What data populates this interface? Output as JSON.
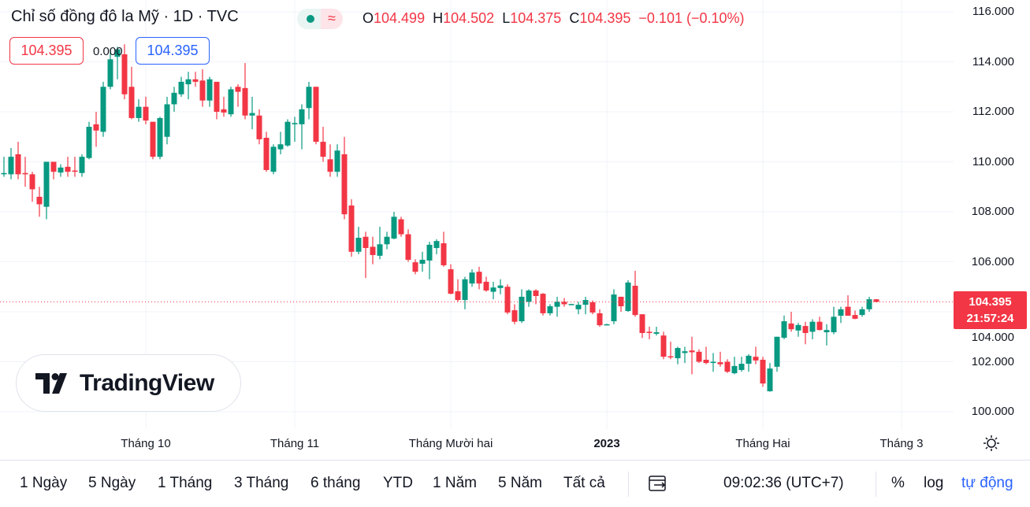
{
  "header": {
    "title": "Chỉ số đồng đô la Mỹ · 1D · TVC",
    "wave_symbol": "≈",
    "ohlc": {
      "o_label": "O",
      "o": "104.499",
      "h_label": "H",
      "h": "104.502",
      "l_label": "L",
      "l": "104.375",
      "c_label": "C",
      "c": "104.395",
      "change": "−0.101 (−0.10%)"
    },
    "sell_price": "104.395",
    "spread": "0.000",
    "buy_price": "104.395"
  },
  "last_price": {
    "value": "104.395",
    "countdown": "21:57:24"
  },
  "logo": {
    "text": "TradingView"
  },
  "toolbar": {
    "ranges": [
      "1 Ngày",
      "5 Ngày",
      "1 Tháng",
      "3 Tháng",
      "6 tháng",
      "YTD",
      "1 Năm",
      "5 Năm",
      "Tất cả"
    ],
    "time": "09:02:36 (UTC+7)",
    "percent": "%",
    "log": "log",
    "auto": "tự động"
  },
  "colors": {
    "up": "#089981",
    "down": "#f23645",
    "accent": "#2962ff"
  },
  "chart_data": {
    "type": "candlestick",
    "title": "Chỉ số đồng đô la Mỹ · 1D · TVC",
    "ylim": [
      99.6,
      116.6
    ],
    "y_ticks": [
      "116.000",
      "114.000",
      "112.000",
      "110.000",
      "108.000",
      "106.000",
      "104.000",
      "102.000",
      "100.000"
    ],
    "y_tick_values": [
      116,
      114,
      112,
      110,
      108,
      106,
      104,
      102,
      100
    ],
    "x_ticks": [
      {
        "label": "Tháng 10",
        "index": 20,
        "bold": false
      },
      {
        "label": "Tháng 11",
        "index": 41,
        "bold": false
      },
      {
        "label": "Tháng Mười hai",
        "index": 63,
        "bold": false
      },
      {
        "label": "2023",
        "index": 85,
        "bold": true
      },
      {
        "label": "Tháng Hai",
        "index": 107,
        "bold": false
      },
      {
        "label": "Tháng 3",
        "index": 127,
        "bold": false
      }
    ],
    "last_value": 104.395,
    "ohlc": [
      [
        109.5,
        110.2,
        109.4,
        109.55
      ],
      [
        109.5,
        110.55,
        109.3,
        110.2
      ],
      [
        110.3,
        110.8,
        109.3,
        109.5
      ],
      [
        109.55,
        110.2,
        109.0,
        109.5
      ],
      [
        109.5,
        109.6,
        108.4,
        108.9
      ],
      [
        108.6,
        109.0,
        107.8,
        108.3
      ],
      [
        108.2,
        110.0,
        107.7,
        110.0
      ],
      [
        110.0,
        110.0,
        109.3,
        109.6
      ],
      [
        109.57,
        109.9,
        109.4,
        109.77
      ],
      [
        109.8,
        110.2,
        109.4,
        109.6
      ],
      [
        109.65,
        110.2,
        109.4,
        109.6
      ],
      [
        109.55,
        110.3,
        109.4,
        110.2
      ],
      [
        110.15,
        111.6,
        110.1,
        111.4
      ],
      [
        111.5,
        112.0,
        110.6,
        111.25
      ],
      [
        111.2,
        113.2,
        111.0,
        113.0
      ],
      [
        113.0,
        114.5,
        112.9,
        114.1
      ],
      [
        114.2,
        114.6,
        113.3,
        114.5
      ],
      [
        114.3,
        114.7,
        112.5,
        112.7
      ],
      [
        113.0,
        113.8,
        111.7,
        111.75
      ],
      [
        111.75,
        112.5,
        111.6,
        112.2
      ],
      [
        112.2,
        112.6,
        111.5,
        111.65
      ],
      [
        111.6,
        111.6,
        110.1,
        110.2
      ],
      [
        110.2,
        111.8,
        110.1,
        111.75
      ],
      [
        111.0,
        112.6,
        110.7,
        112.3
      ],
      [
        112.3,
        113.0,
        112.0,
        112.76
      ],
      [
        112.7,
        113.4,
        112.6,
        113.2
      ],
      [
        113.1,
        113.6,
        112.5,
        113.3
      ],
      [
        113.3,
        113.6,
        113.0,
        113.2
      ],
      [
        113.25,
        113.7,
        112.2,
        112.45
      ],
      [
        112.45,
        113.4,
        112.2,
        113.3
      ],
      [
        113.2,
        113.2,
        111.7,
        112.0
      ],
      [
        112.1,
        112.6,
        111.8,
        111.97
      ],
      [
        111.9,
        113.0,
        111.8,
        112.9
      ],
      [
        113.0,
        113.1,
        112.2,
        112.8
      ],
      [
        112.95,
        113.95,
        111.7,
        111.85
      ],
      [
        111.85,
        112.6,
        111.3,
        111.95
      ],
      [
        111.85,
        112.1,
        110.7,
        110.9
      ],
      [
        110.96,
        111.2,
        109.6,
        109.67
      ],
      [
        109.6,
        110.7,
        109.5,
        110.6
      ],
      [
        110.5,
        111.2,
        110.3,
        110.7
      ],
      [
        110.65,
        111.7,
        110.6,
        111.6
      ],
      [
        111.5,
        111.8,
        110.8,
        111.55
      ],
      [
        111.5,
        112.3,
        110.5,
        112.1
      ],
      [
        112.15,
        113.2,
        111.7,
        113.0
      ],
      [
        113.0,
        113.0,
        110.7,
        110.8
      ],
      [
        110.8,
        111.4,
        110.0,
        110.2
      ],
      [
        110.1,
        110.7,
        109.4,
        109.6
      ],
      [
        109.6,
        110.7,
        109.4,
        110.45
      ],
      [
        110.3,
        111.0,
        107.7,
        107.9
      ],
      [
        108.25,
        108.5,
        106.2,
        106.4
      ],
      [
        106.4,
        107.4,
        106.3,
        106.96
      ],
      [
        107.0,
        107.2,
        105.35,
        106.55
      ],
      [
        106.6,
        107.0,
        105.9,
        106.27
      ],
      [
        106.24,
        107.4,
        106.1,
        106.7
      ],
      [
        106.7,
        107.2,
        106.5,
        107.0
      ],
      [
        106.93,
        108.0,
        106.9,
        107.8
      ],
      [
        107.7,
        107.8,
        107.0,
        107.1
      ],
      [
        107.1,
        107.3,
        106.0,
        106.08
      ],
      [
        105.98,
        106.1,
        105.5,
        105.6
      ],
      [
        105.92,
        106.4,
        105.6,
        106.08
      ],
      [
        106.05,
        106.8,
        105.3,
        106.68
      ],
      [
        106.55,
        106.9,
        106.3,
        106.83
      ],
      [
        106.74,
        107.2,
        105.8,
        105.86
      ],
      [
        105.7,
        105.9,
        104.7,
        104.72
      ],
      [
        104.82,
        105.3,
        104.4,
        104.47
      ],
      [
        104.47,
        105.4,
        104.1,
        105.3
      ],
      [
        105.13,
        105.7,
        105.0,
        105.57
      ],
      [
        105.6,
        105.8,
        104.9,
        105.13
      ],
      [
        105.2,
        105.4,
        104.8,
        104.85
      ],
      [
        104.8,
        105.2,
        104.5,
        104.97
      ],
      [
        104.95,
        105.3,
        104.7,
        105.05
      ],
      [
        105.0,
        105.1,
        103.9,
        103.97
      ],
      [
        104.06,
        104.3,
        103.5,
        103.6
      ],
      [
        103.62,
        104.9,
        103.55,
        104.6
      ],
      [
        104.4,
        104.9,
        104.2,
        104.85
      ],
      [
        104.85,
        104.9,
        104.3,
        104.63
      ],
      [
        104.72,
        104.75,
        103.85,
        103.94
      ],
      [
        103.94,
        104.3,
        103.85,
        104.22
      ],
      [
        104.2,
        104.6,
        103.8,
        104.4
      ],
      [
        104.4,
        104.55,
        104.2,
        104.3
      ],
      [
        104.3,
        104.32,
        104.28,
        104.31
      ],
      [
        104.1,
        104.4,
        103.9,
        104.28
      ],
      [
        104.28,
        104.6,
        103.9,
        104.47
      ],
      [
        104.38,
        104.45,
        103.9,
        103.97
      ],
      [
        103.94,
        104.1,
        103.4,
        103.46
      ],
      [
        103.5,
        103.52,
        103.48,
        103.5
      ],
      [
        103.62,
        104.9,
        103.5,
        104.69
      ],
      [
        104.6,
        104.6,
        104.0,
        104.22
      ],
      [
        104.03,
        105.26,
        104.0,
        105.17
      ],
      [
        105.04,
        105.64,
        103.8,
        103.87
      ],
      [
        103.9,
        103.9,
        102.95,
        103.15
      ],
      [
        103.2,
        103.4,
        102.9,
        103.15
      ],
      [
        103.12,
        103.4,
        103.05,
        103.18
      ],
      [
        103.05,
        103.2,
        102.1,
        102.2
      ],
      [
        102.22,
        102.8,
        102.1,
        102.18
      ],
      [
        102.14,
        102.6,
        101.9,
        102.55
      ],
      [
        102.35,
        102.6,
        101.95,
        102.42
      ],
      [
        102.45,
        103.0,
        101.5,
        102.38
      ],
      [
        102.4,
        102.5,
        101.95,
        102.0
      ],
      [
        102.08,
        102.6,
        101.9,
        101.95
      ],
      [
        101.95,
        102.35,
        101.6,
        102.0
      ],
      [
        101.98,
        102.4,
        101.8,
        101.9
      ],
      [
        102.0,
        102.1,
        101.55,
        101.6
      ],
      [
        101.54,
        102.2,
        101.5,
        101.83
      ],
      [
        101.67,
        102.2,
        101.6,
        101.92
      ],
      [
        101.92,
        102.3,
        101.6,
        102.24
      ],
      [
        102.2,
        102.6,
        101.9,
        102.05
      ],
      [
        102.08,
        102.2,
        101.0,
        101.13
      ],
      [
        100.82,
        101.95,
        100.8,
        101.73
      ],
      [
        101.8,
        103.0,
        101.6,
        103.0
      ],
      [
        102.96,
        103.85,
        102.9,
        103.62
      ],
      [
        103.53,
        104.0,
        103.2,
        103.3
      ],
      [
        103.25,
        103.55,
        103.0,
        103.47
      ],
      [
        103.43,
        103.6,
        102.7,
        103.15
      ],
      [
        103.2,
        103.7,
        102.9,
        103.6
      ],
      [
        103.6,
        103.8,
        103.25,
        103.27
      ],
      [
        103.18,
        103.5,
        102.65,
        103.27
      ],
      [
        103.18,
        104.2,
        103.1,
        103.8
      ],
      [
        103.84,
        104.2,
        103.55,
        104.1
      ],
      [
        104.2,
        104.66,
        103.84,
        103.84
      ],
      [
        103.87,
        104.05,
        103.7,
        103.72
      ],
      [
        103.87,
        104.2,
        103.8,
        104.1
      ],
      [
        104.1,
        104.6,
        104.0,
        104.5
      ],
      [
        104.499,
        104.502,
        104.375,
        104.395
      ]
    ]
  }
}
